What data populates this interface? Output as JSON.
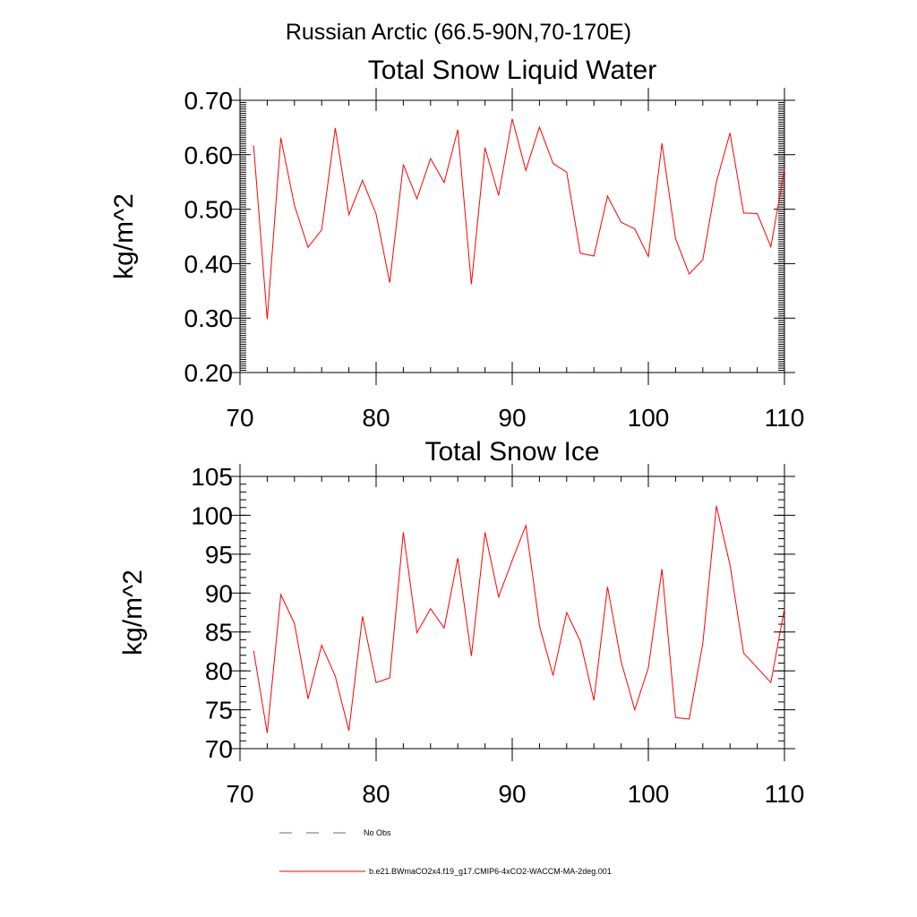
{
  "page": {
    "supertitle": "Russian Arctic (66.5-90N,70-170E)"
  },
  "chart_data": [
    {
      "type": "line",
      "title": "Total Snow Liquid Water",
      "ylabel": "kg/m^2",
      "xlabel": "",
      "xlim": [
        70,
        110
      ],
      "ylim": [
        0.2,
        0.7
      ],
      "xticks": [
        70,
        80,
        90,
        100,
        110
      ],
      "xtick_labels": [
        "70",
        "80",
        "90",
        "100",
        "110"
      ],
      "yticks": [
        0.2,
        0.3,
        0.4,
        0.5,
        0.6,
        0.7
      ],
      "ytick_labels": [
        "0.20",
        "0.30",
        "0.40",
        "0.50",
        "0.60",
        "0.70"
      ],
      "grid": false,
      "series": [
        {
          "name": "b.e21.BWmaCO2x4.f19_g17.CMIP6-4xCO2-WACCM-MA-2deg.001",
          "color": "#ff0000",
          "x": [
            71,
            72,
            73,
            74,
            75,
            76,
            77,
            78,
            79,
            80,
            81,
            82,
            83,
            84,
            85,
            86,
            87,
            88,
            89,
            90,
            91,
            92,
            93,
            94,
            95,
            96,
            97,
            98,
            99,
            100,
            101,
            102,
            103,
            104,
            105,
            106,
            107,
            108,
            109,
            110
          ],
          "values": [
            0.617,
            0.298,
            0.631,
            0.507,
            0.43,
            0.462,
            0.649,
            0.49,
            0.553,
            0.491,
            0.365,
            0.582,
            0.519,
            0.593,
            0.549,
            0.646,
            0.362,
            0.613,
            0.525,
            0.666,
            0.571,
            0.651,
            0.584,
            0.568,
            0.419,
            0.414,
            0.524,
            0.476,
            0.464,
            0.413,
            0.621,
            0.446,
            0.381,
            0.407,
            0.55,
            0.64,
            0.493,
            0.492,
            0.431,
            0.573
          ]
        }
      ]
    },
    {
      "type": "line",
      "title": "Total Snow Ice",
      "ylabel": "kg/m^2",
      "xlabel": "",
      "xlim": [
        70,
        110
      ],
      "ylim": [
        70,
        105
      ],
      "xticks": [
        70,
        80,
        90,
        100,
        110
      ],
      "xtick_labels": [
        "70",
        "80",
        "90",
        "100",
        "110"
      ],
      "yticks": [
        70,
        75,
        80,
        85,
        90,
        95,
        100,
        105
      ],
      "ytick_labels": [
        "70",
        "75",
        "80",
        "85",
        "90",
        "95",
        "100",
        "105"
      ],
      "grid": false,
      "series": [
        {
          "name": "b.e21.BWmaCO2x4.f19_g17.CMIP6-4xCO2-WACCM-MA-2deg.001",
          "color": "#ff0000",
          "x": [
            71,
            72,
            73,
            74,
            75,
            76,
            77,
            78,
            79,
            80,
            81,
            82,
            83,
            84,
            85,
            86,
            87,
            88,
            89,
            90,
            91,
            92,
            93,
            94,
            95,
            96,
            97,
            98,
            99,
            100,
            101,
            102,
            103,
            104,
            105,
            106,
            107,
            108,
            109,
            110
          ],
          "values": [
            82.6,
            72.0,
            89.8,
            86.1,
            76.4,
            83.3,
            79.3,
            72.3,
            87.0,
            78.5,
            79.1,
            97.8,
            84.9,
            88.0,
            85.5,
            94.5,
            81.9,
            97.8,
            89.5,
            94.2,
            98.7,
            85.8,
            79.4,
            87.5,
            83.8,
            76.2,
            90.8,
            81.2,
            75.0,
            80.4,
            93.1,
            74.0,
            73.8,
            83.5,
            101.2,
            93.6,
            82.3,
            80.4,
            78.5,
            88.0
          ]
        }
      ]
    }
  ],
  "legend": {
    "entries": [
      {
        "label": "No Obs",
        "style": "dashed",
        "color": "#6a6a8a"
      },
      {
        "label": "b.e21.BWmaCO2x4.f19_g17.CMIP6-4xCO2-WACCM-MA-2deg.001",
        "style": "solid",
        "color": "#ff0000"
      }
    ]
  }
}
